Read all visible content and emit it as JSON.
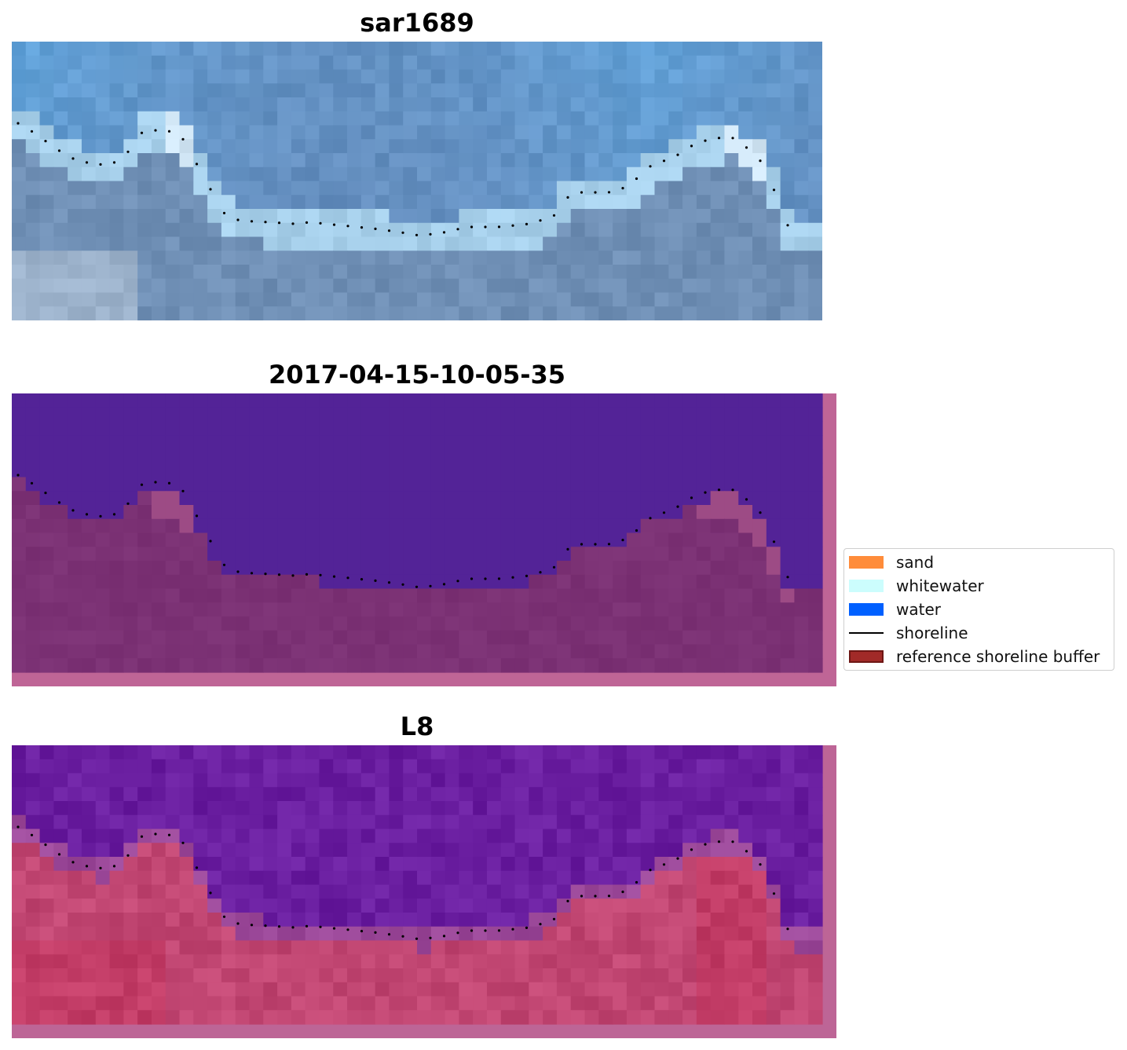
{
  "panels": [
    {
      "title": "sar1689"
    },
    {
      "title": "2017-04-15-10-05-35"
    },
    {
      "title": "L8"
    }
  ],
  "legend": {
    "items": [
      {
        "label": "sand",
        "color": "#ff8c3a",
        "kind": "patch"
      },
      {
        "label": "whitewater",
        "color": "#ccfdfd",
        "kind": "patch"
      },
      {
        "label": "water",
        "color": "#0060ff",
        "kind": "patch"
      },
      {
        "label": "shoreline",
        "color": "#000000",
        "kind": "line"
      },
      {
        "label": "reference shoreline buffer",
        "color": "#a12a28",
        "edge": "#6e1614",
        "kind": "patch"
      }
    ]
  },
  "colors": {
    "rgb_sky": "#5fb3f0",
    "rgb_sea": "#6587b5",
    "rgb_beach": "#98c8e8",
    "rgb_land": "#6f8fb5",
    "class_water": "#532397",
    "class_land": "#7b3174",
    "class_pink": "#bf6596",
    "index_water": "#6a1ea0",
    "index_land": "#c23c66",
    "index_pink": "#bd6596"
  }
}
